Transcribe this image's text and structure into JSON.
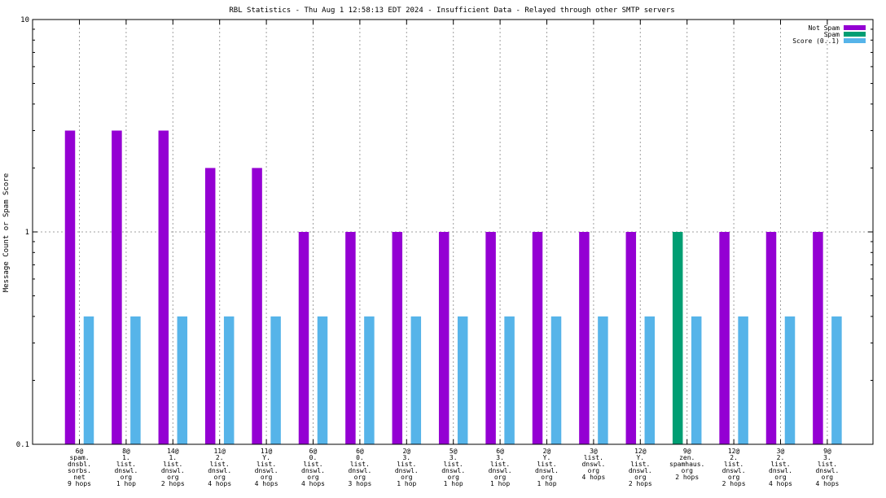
{
  "chart_data": {
    "type": "bar",
    "title": "RBL Statistics - Thu Aug  1 12:58:13 EDT 2024 - Insufficient Data - Relayed through other SMTP servers",
    "xlabel": "",
    "ylabel": "Message Count or Spam Score",
    "yscale": "log",
    "ylim": [
      0.1,
      10
    ],
    "yticks": [
      "0.1",
      "1",
      "10"
    ],
    "grid": true,
    "legend_position": "top-right",
    "categories": [
      [
        "6@",
        "spam.",
        "dnsbl.",
        "sorbs.",
        "net",
        "9 hops"
      ],
      [
        "8@",
        "1.",
        "list.",
        "dnswl.",
        "org",
        "1 hop"
      ],
      [
        "14@",
        "1.",
        "list.",
        "dnswl.",
        "org",
        "2 hops"
      ],
      [
        "11@",
        "2.",
        "list.",
        "dnswl.",
        "org",
        "4 hops"
      ],
      [
        "11@",
        "Y.",
        "list.",
        "dnswl.",
        "org",
        "4 hops"
      ],
      [
        "6@",
        "0.",
        "list.",
        "dnswl.",
        "org",
        "4 hops"
      ],
      [
        "6@",
        "0.",
        "list.",
        "dnswl.",
        "org",
        "3 hops"
      ],
      [
        "2@",
        "3.",
        "list.",
        "dnswl.",
        "org",
        "1 hop"
      ],
      [
        "5@",
        "3.",
        "list.",
        "dnswl.",
        "org",
        "1 hop"
      ],
      [
        "6@",
        "3.",
        "list.",
        "dnswl.",
        "org",
        "1 hop"
      ],
      [
        "2@",
        "Y.",
        "list.",
        "dnswl.",
        "org",
        "1 hop"
      ],
      [
        "3@",
        "list.",
        "dnswl.",
        "org",
        "4 hops"
      ],
      [
        "12@",
        "Y.",
        "list.",
        "dnswl.",
        "org",
        "2 hops"
      ],
      [
        "9@",
        "zen.",
        "spamhaus.",
        "org",
        "2 hops"
      ],
      [
        "12@",
        "2.",
        "list.",
        "dnswl.",
        "org",
        "2 hops"
      ],
      [
        "3@",
        "2.",
        "list.",
        "dnswl.",
        "org",
        "4 hops"
      ],
      [
        "9@",
        "3.",
        "list.",
        "dnswl.",
        "org",
        "4 hops"
      ]
    ],
    "series": [
      {
        "name": "Not Spam",
        "color": "#9400d3",
        "values": [
          3,
          3,
          3,
          2,
          2,
          1,
          1,
          1,
          1,
          1,
          1,
          1,
          1,
          0,
          1,
          1,
          1
        ]
      },
      {
        "name": "Spam",
        "color": "#009e73",
        "values": [
          0,
          0,
          0,
          0,
          0,
          0,
          0,
          0,
          0,
          0,
          0,
          0,
          0,
          1,
          0,
          0,
          0
        ]
      },
      {
        "name": "Score (0..1)",
        "color": "#56b4e9",
        "values": [
          0.4,
          0.4,
          0.4,
          0.4,
          0.4,
          0.4,
          0.4,
          0.4,
          0.4,
          0.4,
          0.4,
          0.4,
          0.4,
          0.4,
          0.4,
          0.4,
          0.4
        ]
      }
    ]
  }
}
